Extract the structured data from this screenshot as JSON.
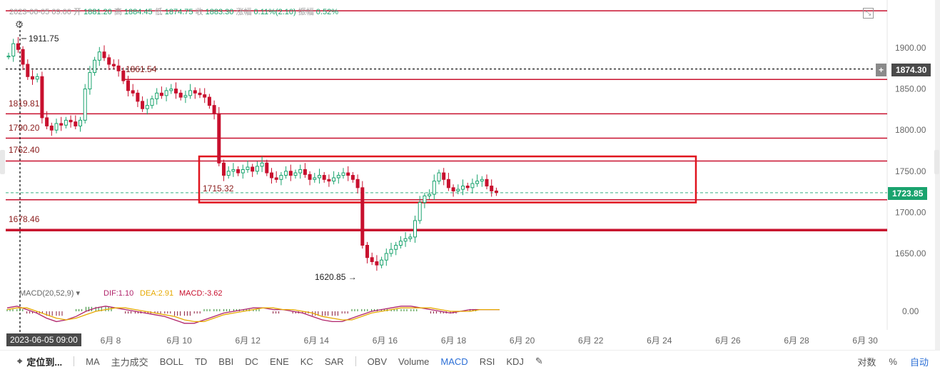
{
  "info_bar": {
    "date": "2023-06-05 09:00",
    "open_label": "开",
    "open": "1881.20",
    "high_label": "高",
    "high": "1884.45",
    "low_label": "低",
    "low": "1874.75",
    "close_label": "收",
    "close": "1883.30",
    "change_label": "涨幅",
    "change": "0.11%(2.10)",
    "amplitude_label": "振幅",
    "amplitude": "0.52%"
  },
  "crosshair": {
    "date_tag": "2023-06-05 09:00",
    "price_tag": "1874.30"
  },
  "last_price_tag": "1723.85",
  "price_labels": {
    "high": "1911.75",
    "low": "1620.85",
    "line_1861": "1861.54",
    "line_1819": "1819.81",
    "line_1790": "1790.20",
    "line_1762": "1762.40",
    "line_1715": "1715.32",
    "line_1678": "1678.46"
  },
  "macd_legend": {
    "name": "MACD(20,52,9)",
    "dif": "DIF:1.10",
    "dea": "DEA:2.91",
    "macd": "MACD:-3.62"
  },
  "bottom_bar": {
    "locate": "定位到...",
    "indicators": [
      "MA",
      "主力成交",
      "BOLL",
      "TD",
      "BBI",
      "DC",
      "ENE",
      "KC",
      "SAR",
      "OBV",
      "Volume",
      "MACD",
      "RSI",
      "KDJ"
    ],
    "log_label": "对数",
    "percent_label": "%",
    "auto_label": "自动"
  },
  "colors": {
    "up": "#1aa36e",
    "down": "#c8102e",
    "level_line": "#c8102e",
    "box": "#e0141e",
    "dif": "#b0246b",
    "dea": "#e6a800",
    "price_tag": "#1aa36e"
  },
  "chart_data": {
    "type": "candlestick",
    "x_ticks": [
      "6月 8",
      "6月 10",
      "6月 12",
      "6月 14",
      "6月 16",
      "6月 18",
      "6月 20",
      "6月 22",
      "6月 24",
      "6月 26",
      "6月 28",
      "6月 30"
    ],
    "y_ticks": [
      "1900.00",
      "1850.00",
      "1800.00",
      "1750.00",
      "1700.00",
      "1650.00"
    ],
    "macd_y_tick": "0.00",
    "ylim": [
      1615,
      1945
    ],
    "horizontal_levels": [
      1945,
      1874.3,
      1861.54,
      1819.81,
      1790.2,
      1762.4,
      1715.32,
      1678.46
    ],
    "dashed_levels": [
      1874.3,
      1723.85
    ],
    "highlight_box": {
      "from": "6月 10",
      "to": "6月 25",
      "price_low": 1712,
      "price_high": 1768
    },
    "price_path": [
      [
        0,
        1890
      ],
      [
        1,
        1905
      ],
      [
        2,
        1898
      ],
      [
        3,
        1880
      ],
      [
        4,
        1865
      ],
      [
        5,
        1862
      ],
      [
        6,
        1865
      ],
      [
        7,
        1815
      ],
      [
        8,
        1805
      ],
      [
        9,
        1800
      ],
      [
        10,
        1808
      ],
      [
        11,
        1806
      ],
      [
        12,
        1812
      ],
      [
        13,
        1810
      ],
      [
        14,
        1805
      ],
      [
        15,
        1812
      ],
      [
        16,
        1850
      ],
      [
        17,
        1870
      ],
      [
        18,
        1885
      ],
      [
        19,
        1895
      ],
      [
        20,
        1888
      ],
      [
        21,
        1880
      ],
      [
        22,
        1878
      ],
      [
        23,
        1872
      ],
      [
        24,
        1860
      ],
      [
        25,
        1848
      ],
      [
        26,
        1845
      ],
      [
        27,
        1835
      ],
      [
        28,
        1826
      ],
      [
        29,
        1830
      ],
      [
        30,
        1838
      ],
      [
        31,
        1845
      ],
      [
        32,
        1842
      ],
      [
        33,
        1848
      ],
      [
        34,
        1850
      ],
      [
        35,
        1845
      ],
      [
        36,
        1840
      ],
      [
        37,
        1842
      ],
      [
        38,
        1848
      ],
      [
        39,
        1845
      ],
      [
        40,
        1843
      ],
      [
        41,
        1840
      ],
      [
        42,
        1830
      ],
      [
        43,
        1820
      ],
      [
        44,
        1760
      ],
      [
        45,
        1745
      ],
      [
        46,
        1750
      ],
      [
        47,
        1752
      ],
      [
        48,
        1748
      ],
      [
        49,
        1752
      ],
      [
        50,
        1755
      ],
      [
        51,
        1750
      ],
      [
        52,
        1756
      ],
      [
        53,
        1760
      ],
      [
        54,
        1748
      ],
      [
        55,
        1742
      ],
      [
        56,
        1740
      ],
      [
        57,
        1745
      ],
      [
        58,
        1750
      ],
      [
        59,
        1745
      ],
      [
        60,
        1748
      ],
      [
        61,
        1752
      ],
      [
        62,
        1746
      ],
      [
        63,
        1740
      ],
      [
        64,
        1742
      ],
      [
        65,
        1745
      ],
      [
        66,
        1740
      ],
      [
        67,
        1738
      ],
      [
        68,
        1742
      ],
      [
        69,
        1745
      ],
      [
        70,
        1748
      ],
      [
        71,
        1745
      ],
      [
        72,
        1740
      ],
      [
        73,
        1730
      ],
      [
        74,
        1660
      ],
      [
        75,
        1645
      ],
      [
        76,
        1640
      ],
      [
        77,
        1636
      ],
      [
        78,
        1642
      ],
      [
        79,
        1650
      ],
      [
        80,
        1655
      ],
      [
        81,
        1660
      ],
      [
        82,
        1665
      ],
      [
        83,
        1668
      ],
      [
        84,
        1670
      ],
      [
        85,
        1690
      ],
      [
        86,
        1712
      ],
      [
        87,
        1720
      ],
      [
        88,
        1722
      ],
      [
        89,
        1738
      ],
      [
        90,
        1748
      ],
      [
        91,
        1740
      ],
      [
        92,
        1730
      ],
      [
        93,
        1726
      ],
      [
        94,
        1728
      ],
      [
        95,
        1732
      ],
      [
        96,
        1730
      ],
      [
        97,
        1735
      ],
      [
        98,
        1738
      ],
      [
        99,
        1740
      ],
      [
        100,
        1732
      ],
      [
        101,
        1726
      ],
      [
        102,
        1724
      ]
    ],
    "macd_path_dif": [
      2,
      3,
      1,
      -1,
      -4,
      -6,
      -5,
      -3,
      0,
      2,
      3,
      2,
      1,
      0,
      -1,
      -2,
      -3,
      -5,
      -7,
      -7,
      -5,
      -3,
      -1,
      0,
      1,
      2,
      2,
      1,
      1,
      0,
      -1,
      -3,
      -5,
      -6,
      -6,
      -4,
      -2,
      0,
      1,
      2,
      3,
      3,
      2,
      1,
      0,
      -1,
      0,
      1,
      1,
      1,
      1
    ],
    "macd_path_dea": [
      1,
      2,
      2,
      0,
      -2,
      -4,
      -5,
      -4,
      -2,
      0,
      1,
      2,
      2,
      1,
      0,
      -1,
      -2,
      -3,
      -5,
      -6,
      -6,
      -4,
      -2,
      -1,
      0,
      1,
      2,
      2,
      1,
      1,
      0,
      -1,
      -3,
      -4,
      -5,
      -5,
      -3,
      -1,
      0,
      1,
      2,
      2,
      2,
      2,
      1,
      0,
      0,
      0,
      1,
      1,
      1
    ]
  }
}
